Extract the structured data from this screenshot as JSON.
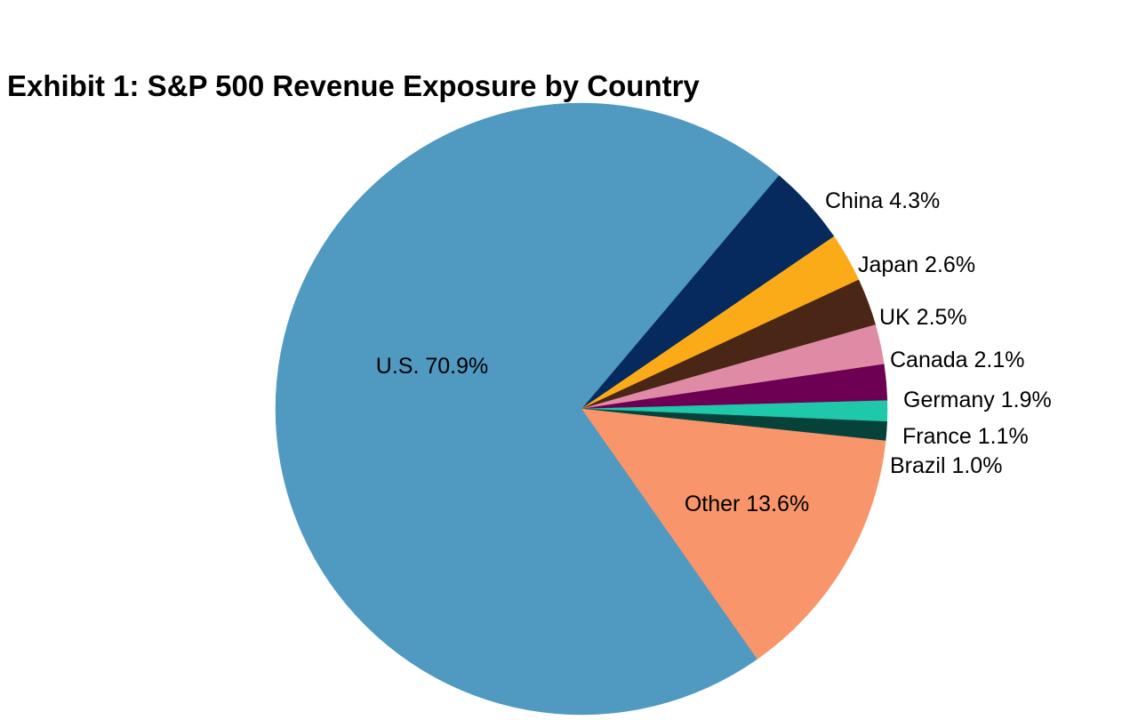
{
  "title": "Exhibit 1: S&P 500 Revenue Exposure by Country",
  "chart_data": {
    "type": "pie",
    "title": "Exhibit 1: S&P 500 Revenue Exposure by Country",
    "start": "top, clockwise",
    "slices": [
      {
        "label": "China 4.3%",
        "name": "China",
        "value": 4.3,
        "color": "#062a5e"
      },
      {
        "label": "Japan 2.6%",
        "name": "Japan",
        "value": 2.6,
        "color": "#fbab18"
      },
      {
        "label": "UK 2.5%",
        "name": "UK",
        "value": 2.5,
        "color": "#4a2617"
      },
      {
        "label": "Canada 2.1%",
        "name": "Canada",
        "value": 2.1,
        "color": "#e08ba6"
      },
      {
        "label": "Germany 1.9%",
        "name": "Germany",
        "value": 1.9,
        "color": "#6d0052"
      },
      {
        "label": "France 1.1%",
        "name": "France",
        "value": 1.1,
        "color": "#1ec8a8"
      },
      {
        "label": "Brazil 1.0%",
        "name": "Brazil",
        "value": 1.0,
        "color": "#06423a"
      },
      {
        "label": "Other 13.6%",
        "name": "Other",
        "value": 13.6,
        "color": "#f8956a"
      },
      {
        "label": "U.S. 70.9%",
        "name": "U.S.",
        "value": 70.9,
        "color": "#5099c1"
      }
    ]
  }
}
